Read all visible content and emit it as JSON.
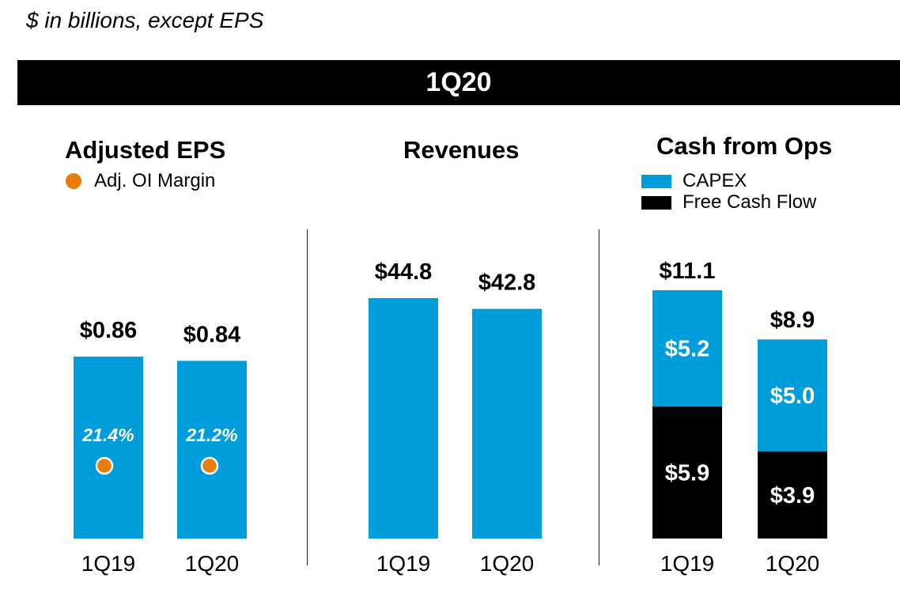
{
  "subtitle": "$ in billions, except EPS",
  "banner": "1Q20",
  "colors": {
    "bar": "#009ddc",
    "fcf": "#000000",
    "dot": "#e87d0c"
  },
  "chart_data": [
    {
      "type": "bar",
      "title": "Adjusted EPS",
      "legend": [
        {
          "name": "Adj. OI Margin",
          "marker": "dot"
        }
      ],
      "categories": [
        "1Q19",
        "1Q20"
      ],
      "values": [
        0.86,
        0.84
      ],
      "value_labels": [
        "$0.86",
        "$0.84"
      ],
      "margins": [
        21.4,
        21.2
      ],
      "margin_labels": [
        "21.4%",
        "21.2%"
      ]
    },
    {
      "type": "bar",
      "title": "Revenues",
      "categories": [
        "1Q19",
        "1Q20"
      ],
      "values": [
        44.8,
        42.8
      ],
      "value_labels": [
        "$44.8",
        "$42.8"
      ]
    },
    {
      "type": "bar",
      "stacked": true,
      "title": "Cash from Ops",
      "legend": [
        {
          "name": "CAPEX",
          "marker": "square"
        },
        {
          "name": "Free Cash Flow",
          "marker": "square"
        }
      ],
      "categories": [
        "1Q19",
        "1Q20"
      ],
      "totals": [
        11.1,
        8.9
      ],
      "total_labels": [
        "$11.1",
        "$8.9"
      ],
      "series": [
        {
          "name": "Free Cash Flow",
          "values": [
            5.9,
            3.9
          ],
          "labels": [
            "$5.9",
            "$3.9"
          ]
        },
        {
          "name": "CAPEX",
          "values": [
            5.2,
            5.0
          ],
          "labels": [
            "$5.2",
            "$5.0"
          ]
        }
      ]
    }
  ]
}
